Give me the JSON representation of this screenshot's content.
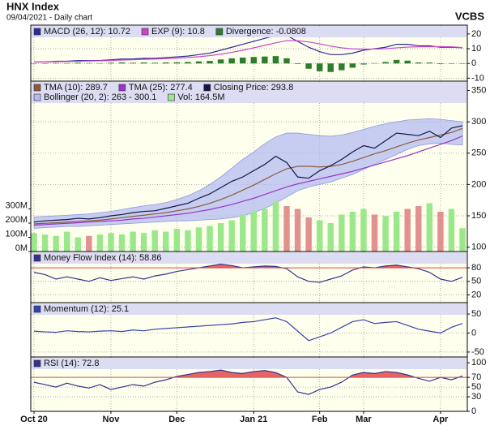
{
  "chart_data": [
    {
      "type": "line",
      "title": "HNX Index",
      "subtitle": "09/04/2021 - Daily chart",
      "brand": "VCBS",
      "ylim": [
        -12,
        26
      ],
      "yticks": [
        20,
        10,
        0,
        -10
      ],
      "grid": true,
      "series": [
        {
          "name": "MACD (26, 12): 10.72",
          "type": "line",
          "color": "#2b2b9e",
          "values": [
            1,
            1,
            1.5,
            1.5,
            2,
            2,
            2,
            2.5,
            3,
            3,
            3.5,
            3.5,
            4,
            4.5,
            5,
            6,
            7,
            9,
            11,
            13,
            15,
            17,
            19,
            19,
            15,
            11,
            8,
            6,
            6,
            7,
            9,
            10,
            11,
            13,
            13,
            12,
            12,
            11,
            11,
            10.72
          ]
        },
        {
          "name": "EXP (9): 10.8",
          "type": "line",
          "color": "#cc44cc",
          "values": [
            1,
            1,
            1.2,
            1.3,
            1.5,
            1.7,
            1.8,
            2,
            2.3,
            2.5,
            2.8,
            3,
            3.3,
            3.7,
            4,
            4.6,
            5.3,
            6.3,
            7.5,
            9,
            10.6,
            12.3,
            14,
            15.5,
            15.4,
            14.6,
            13.3,
            11.8,
            10.6,
            9.9,
            9.7,
            9.8,
            10,
            10.6,
            11.1,
            11.3,
            11.4,
            11.4,
            11.3,
            10.8
          ]
        },
        {
          "name": "Divergence: -0.0808",
          "type": "bar",
          "color": "#2e7d2e",
          "values": [
            0,
            0,
            0.3,
            0.2,
            0.5,
            0.3,
            0.2,
            0.5,
            0.7,
            0.5,
            0.7,
            0.5,
            0.7,
            0.8,
            1,
            1.4,
            1.7,
            2.7,
            3.5,
            4,
            4.4,
            4.7,
            5,
            3.5,
            -0.4,
            -3.6,
            -5.3,
            -5.8,
            -4.6,
            -2.9,
            -0.7,
            0.2,
            1,
            2.4,
            1.9,
            0.7,
            0.6,
            -0.4,
            -0.3,
            -0.08
          ]
        }
      ]
    },
    {
      "type": "line",
      "ylim": [
        93,
        365
      ],
      "yticks": [
        100,
        150,
        200,
        250,
        300,
        350
      ],
      "grid": true,
      "y2lim": [
        0,
        1200
      ],
      "y2ticks": [
        {
          "value": 0,
          "label": "0M"
        },
        {
          "value": 100,
          "label": "100M"
        },
        {
          "value": 200,
          "label": "200M"
        },
        {
          "value": 300,
          "label": "300M"
        }
      ],
      "series": [
        {
          "name": "TMA (10): 289.7",
          "type": "line",
          "color": "#8b5a3c",
          "values": [
            137,
            138,
            139,
            140,
            141,
            142,
            143,
            145,
            147,
            149,
            151,
            153,
            155,
            158,
            161,
            165,
            170,
            176,
            183,
            191,
            199,
            208,
            217,
            225,
            229,
            229,
            228,
            229,
            232,
            237,
            243,
            249,
            254,
            260,
            266,
            271,
            275,
            279,
            283,
            289.7
          ]
        },
        {
          "name": "TMA (25): 277.4",
          "type": "line",
          "color": "#9933cc",
          "values": [
            135,
            136,
            137,
            138,
            139,
            140,
            141,
            142,
            143,
            145,
            146,
            148,
            150,
            152,
            154,
            157,
            160,
            164,
            168,
            173,
            178,
            184,
            190,
            196,
            201,
            205,
            209,
            213,
            217,
            221,
            226,
            231,
            236,
            241,
            246,
            252,
            258,
            264,
            270,
            277.4
          ]
        },
        {
          "name": "Closing Price: 293.8",
          "type": "line",
          "color": "#141446",
          "values": [
            140,
            142,
            143,
            144,
            146,
            145,
            147,
            150,
            152,
            155,
            157,
            158,
            162,
            166,
            170,
            178,
            185,
            195,
            205,
            212,
            222,
            232,
            245,
            235,
            212,
            210,
            222,
            230,
            240,
            252,
            262,
            258,
            270,
            282,
            280,
            278,
            285,
            275,
            290,
            293.8
          ]
        },
        {
          "name": "Bollinger (20, 2): 263 - 300.1",
          "type": "band",
          "color": "#b4bcf0",
          "upper": [
            148,
            149,
            150,
            151,
            152,
            153,
            155,
            157,
            160,
            163,
            166,
            168,
            171,
            176,
            182,
            190,
            200,
            212,
            226,
            240,
            252,
            265,
            276,
            282,
            282,
            280,
            278,
            277,
            279,
            283,
            288,
            293,
            297,
            300,
            303,
            304,
            305,
            304,
            302,
            300.1
          ],
          "lower": [
            130,
            131,
            132,
            133,
            133,
            134,
            135,
            136,
            137,
            138,
            139,
            140,
            141,
            142,
            142,
            143,
            144,
            145,
            147,
            150,
            155,
            162,
            170,
            180,
            190,
            196,
            200,
            204,
            210,
            216,
            224,
            232,
            240,
            248,
            256,
            262,
            265,
            266,
            264,
            263
          ]
        },
        {
          "name": "Vol: 164.5M",
          "type": "bar",
          "axis": "y2",
          "color": "#9be88c",
          "colors": [
            "#9be88c",
            "#9be88c",
            "#9be88c",
            "#9be88c",
            "#9be88c",
            "#e39090",
            "#9be88c",
            "#9be88c",
            "#9be88c",
            "#9be88c",
            "#9be88c",
            "#9be88c",
            "#9be88c",
            "#9be88c",
            "#9be88c",
            "#9be88c",
            "#9be88c",
            "#9be88c",
            "#9be88c",
            "#9be88c",
            "#9be88c",
            "#9be88c",
            "#9be88c",
            "#e39090",
            "#e39090",
            "#e39090",
            "#9be88c",
            "#9be88c",
            "#9be88c",
            "#9be88c",
            "#9be88c",
            "#e39090",
            "#9be88c",
            "#9be88c",
            "#e39090",
            "#e39090",
            "#9be88c",
            "#e39090",
            "#9be88c",
            "#9be88c"
          ],
          "values": [
            130,
            120,
            110,
            140,
            100,
            110,
            120,
            130,
            120,
            140,
            130,
            150,
            140,
            160,
            150,
            170,
            180,
            200,
            220,
            260,
            280,
            300,
            350,
            320,
            300,
            240,
            220,
            200,
            260,
            280,
            300,
            260,
            250,
            280,
            300,
            320,
            340,
            280,
            300,
            164.5
          ]
        }
      ]
    },
    {
      "type": "line",
      "ylim": [
        3,
        116
      ],
      "yticks": [
        20,
        50,
        80
      ],
      "grid": true,
      "threshold": 80,
      "threshold_color": "#e04848",
      "series": [
        {
          "name": "Money Flow Index (14): 58.86",
          "type": "line",
          "color": "#33338f",
          "values": [
            70,
            65,
            55,
            60,
            55,
            50,
            58,
            52,
            56,
            60,
            55,
            62,
            66,
            72,
            76,
            80,
            84,
            88,
            85,
            80,
            82,
            84,
            83,
            78,
            60,
            50,
            48,
            55,
            62,
            75,
            82,
            80,
            84,
            86,
            82,
            78,
            70,
            55,
            50,
            58.86
          ]
        }
      ]
    },
    {
      "type": "line",
      "ylim": [
        -63,
        80
      ],
      "yticks": [
        50,
        0,
        -50
      ],
      "grid": true,
      "series": [
        {
          "name": "Momentum (12): 25.1",
          "type": "line",
          "color": "#3344aa",
          "values": [
            5,
            3,
            2,
            6,
            4,
            3,
            5,
            6,
            4,
            8,
            6,
            10,
            12,
            14,
            16,
            18,
            20,
            22,
            24,
            28,
            30,
            35,
            40,
            30,
            5,
            -20,
            -10,
            0,
            15,
            30,
            35,
            25,
            28,
            30,
            20,
            10,
            5,
            0,
            15,
            25.1
          ]
        }
      ]
    },
    {
      "type": "line",
      "ylim": [
        0,
        112
      ],
      "yticks": [
        100,
        70,
        50,
        30,
        0
      ],
      "grid": true,
      "threshold": 70,
      "threshold_color": "#e04848",
      "categories": [
        "Oct 20",
        null,
        null,
        null,
        null,
        null,
        null,
        "Nov",
        null,
        null,
        null,
        null,
        null,
        "Dec",
        null,
        null,
        null,
        null,
        null,
        null,
        "Jan 21",
        null,
        null,
        null,
        null,
        null,
        "Feb",
        null,
        null,
        null,
        "Mar",
        null,
        null,
        null,
        null,
        null,
        null,
        "Apr",
        null,
        null
      ],
      "series": [
        {
          "name": "RSI (14): 72.8",
          "type": "line",
          "color": "#33338f",
          "values": [
            60,
            55,
            50,
            58,
            52,
            48,
            55,
            45,
            50,
            55,
            52,
            60,
            65,
            72,
            76,
            80,
            82,
            85,
            80,
            78,
            82,
            84,
            80,
            70,
            40,
            35,
            45,
            50,
            60,
            75,
            80,
            78,
            82,
            80,
            75,
            68,
            62,
            70,
            65,
            72.8
          ]
        }
      ]
    }
  ]
}
